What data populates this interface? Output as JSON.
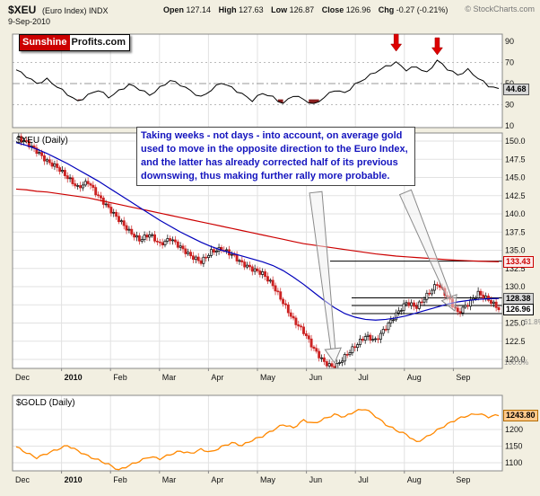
{
  "header": {
    "symbol": "$XEU",
    "symbol_desc": "(Euro Index) INDX",
    "date": "9-Sep-2010",
    "quote": {
      "open_label": "Open",
      "open": "127.14",
      "high_label": "High",
      "high": "127.63",
      "low_label": "Low",
      "low": "126.87",
      "close_label": "Close",
      "close": "126.96",
      "chg_label": "Chg",
      "chg": "-0.27 (-0.21%)"
    },
    "copyright": "© StockCharts.com"
  },
  "logo": {
    "brand_red": "Sunshine",
    "brand_black": "Profits.com"
  },
  "annotation": {
    "text": "Taking weeks - not days - into account, on average gold used to move in the opposite direction to the Euro Index, and the latter has already corrected half of its previous downswing, thus making further rally more probable.",
    "arrow_targets": [
      "june-low",
      "august-consolidation"
    ]
  },
  "x_axis": {
    "months": [
      "Dec",
      "2010",
      "Feb",
      "Mar",
      "Apr",
      "May",
      "Jun",
      "Jul",
      "Aug",
      "Sep"
    ],
    "bold_index": 1
  },
  "chart_data": [
    {
      "type": "line",
      "name": "momentum-indicator",
      "ylim": [
        8,
        92
      ],
      "yticks": [
        90,
        70,
        50,
        30,
        10
      ],
      "overbought": 70,
      "oversold": 30,
      "midline": 50,
      "last": "44.68",
      "signal_arrows_at_indices": [
        37,
        41
      ],
      "values": [
        63,
        57,
        50,
        54,
        47,
        40,
        33,
        39,
        44,
        37,
        43,
        49,
        45,
        39,
        46,
        53,
        49,
        43,
        37,
        44,
        51,
        46,
        40,
        34,
        41,
        37,
        31,
        39,
        35,
        30,
        37,
        44,
        41,
        49,
        55,
        61,
        66,
        70,
        63,
        66,
        60,
        72,
        64,
        58,
        63,
        55,
        48,
        44.68
      ]
    },
    {
      "type": "candlestick",
      "name": "xeu-daily",
      "title": "$XEU (Daily)",
      "ylim": [
        118.5,
        151
      ],
      "yticks": [
        "150.0",
        "147.5",
        "145.0",
        "142.5",
        "140.0",
        "137.5",
        "135.0",
        "132.5",
        "130.0",
        "127.5",
        "125.0",
        "122.5",
        "120.0"
      ],
      "last": "126.96",
      "ma50_last": "128.38",
      "ma200_last": "133.43",
      "support_resistance_levels": [
        133.5,
        128.45,
        127.4,
        126.3
      ],
      "fib_labels": [
        {
          "label": "61.8%",
          "value": 125.2
        },
        {
          "label": "100.0%",
          "value": 119.6
        }
      ],
      "close_values": [
        150.6,
        149.8,
        148.6,
        147.2,
        146.4,
        145.0,
        143.6,
        144.4,
        142.4,
        140.8,
        139.2,
        137.6,
        136.4,
        137.2,
        135.8,
        136.6,
        135.4,
        134.2,
        133.4,
        134.8,
        135.2,
        134.4,
        133.2,
        132.4,
        131.8,
        130.2,
        127.8,
        125.4,
        123.8,
        121.4,
        119.6,
        118.8,
        120.4,
        121.8,
        123.2,
        122.6,
        124.4,
        126.2,
        127.8,
        127.2,
        128.8,
        130.4,
        128.6,
        126.4,
        127.6,
        129.1,
        128.2,
        126.96
      ],
      "ma50": [
        149.8,
        149.4,
        148.9,
        148.3,
        147.6,
        146.9,
        146.1,
        145.3,
        144.5,
        143.6,
        142.7,
        141.8,
        140.9,
        140.0,
        139.1,
        138.3,
        137.5,
        136.8,
        136.1,
        135.5,
        135.0,
        134.6,
        134.2,
        133.8,
        133.4,
        132.9,
        132.2,
        131.3,
        130.3,
        129.2,
        128.1,
        127.1,
        126.3,
        125.8,
        125.5,
        125.4,
        125.5,
        125.7,
        126.0,
        126.4,
        126.8,
        127.2,
        127.6,
        127.9,
        128.1,
        128.25,
        128.33,
        128.38
      ],
      "ma200": [
        143.4,
        143.3,
        143.1,
        143.0,
        142.8,
        142.6,
        142.4,
        142.2,
        141.9,
        141.6,
        141.3,
        141.0,
        140.7,
        140.4,
        140.1,
        139.8,
        139.5,
        139.2,
        138.9,
        138.6,
        138.3,
        138.0,
        137.7,
        137.4,
        137.1,
        136.8,
        136.5,
        136.2,
        135.9,
        135.7,
        135.5,
        135.3,
        135.1,
        134.9,
        134.7,
        134.5,
        134.35,
        134.2,
        134.1,
        134.0,
        133.9,
        133.8,
        133.7,
        133.62,
        133.56,
        133.5,
        133.46,
        133.43
      ]
    },
    {
      "type": "line",
      "name": "gold-daily",
      "title": "$GOLD (Daily)",
      "yticks": [
        1200,
        1150,
        1100
      ],
      "last": "1243.80",
      "values": [
        1148,
        1130,
        1115,
        1128,
        1140,
        1152,
        1136,
        1120,
        1108,
        1095,
        1078,
        1092,
        1105,
        1118,
        1112,
        1125,
        1135,
        1128,
        1140,
        1132,
        1148,
        1160,
        1152,
        1168,
        1180,
        1198,
        1215,
        1205,
        1228,
        1218,
        1232,
        1245,
        1238,
        1255,
        1262,
        1240,
        1215,
        1198,
        1185,
        1162,
        1178,
        1198,
        1216,
        1232,
        1242,
        1248,
        1238,
        1243.8
      ]
    }
  ],
  "colors": {
    "background": "#f2efe1",
    "plot_bg": "#ffffff",
    "grid": "#e2e2e2",
    "candle_up": "#000000",
    "candle_down": "#cc2222",
    "ma50": "#0000bb",
    "ma200": "#cc0000",
    "gold_line": "#ff8800",
    "indicator_line": "#000000",
    "annotation_text": "#1414be",
    "arrow_red": "#dd0000",
    "axis_text": "#111111"
  }
}
